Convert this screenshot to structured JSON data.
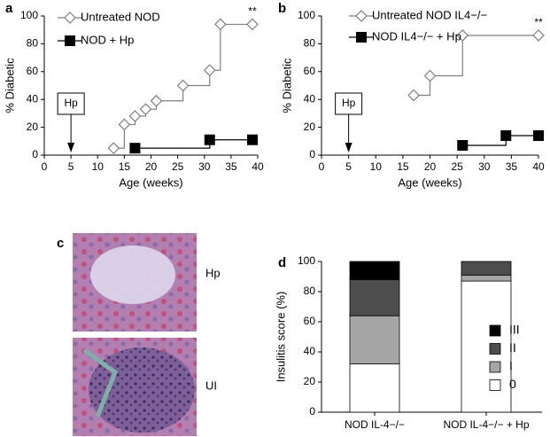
{
  "chart_data": [
    {
      "panel_label": "a",
      "type": "line",
      "step": true,
      "xlabel": "Age (weeks)",
      "ylabel": "% Diabetic",
      "xlim": [
        0,
        40
      ],
      "xticks": [
        0,
        5,
        10,
        15,
        20,
        25,
        30,
        35,
        40
      ],
      "ylim": [
        0,
        100
      ],
      "yticks": [
        0,
        20,
        40,
        60,
        80,
        100
      ],
      "series": [
        {
          "name": "Untreated NOD",
          "color": "#7f7f7f",
          "marker": "diamond",
          "x": [
            13,
            15,
            17,
            19,
            21,
            26,
            31,
            33,
            39
          ],
          "values": [
            5,
            22,
            28,
            33,
            39,
            50,
            61,
            94,
            94
          ]
        },
        {
          "name": "NOD + Hp",
          "color": "#000000",
          "marker": "square",
          "x": [
            17,
            31,
            39
          ],
          "values": [
            5,
            11,
            11
          ]
        }
      ],
      "significance": "**",
      "treatment": {
        "text": "Hp",
        "x": 5
      }
    },
    {
      "panel_label": "b",
      "type": "line",
      "step": true,
      "xlabel": "Age (weeks)",
      "ylabel": "% Diabetic",
      "xlim": [
        0,
        40
      ],
      "xticks": [
        0,
        5,
        10,
        15,
        20,
        25,
        30,
        35,
        40
      ],
      "ylim": [
        0,
        100
      ],
      "yticks": [
        0,
        20,
        40,
        60,
        80,
        100
      ],
      "series": [
        {
          "name": "Untreated NOD IL4−/−",
          "color": "#7f7f7f",
          "marker": "diamond",
          "x": [
            17,
            20,
            26,
            40
          ],
          "values": [
            43,
            57,
            86,
            86
          ]
        },
        {
          "name": "NOD IL4−/− + Hp",
          "color": "#000000",
          "marker": "square",
          "x": [
            26,
            34,
            40
          ],
          "values": [
            7,
            14,
            14
          ]
        }
      ],
      "significance": "**",
      "treatment": {
        "text": "Hp",
        "x": 5
      }
    },
    {
      "panel_label": "c",
      "type": "image",
      "labels": [
        "Hp",
        "UI"
      ]
    },
    {
      "panel_label": "d",
      "type": "bar",
      "stacked": true,
      "ylabel": "Insulitis score (%)",
      "categories": [
        "NOD IL-4−/−",
        "NOD IL-4−/− + Hp"
      ],
      "ylim": [
        0,
        100
      ],
      "yticks": [
        0,
        20,
        40,
        60,
        80,
        100
      ],
      "series": [
        {
          "name": "0",
          "color": "#ffffff",
          "values": [
            32,
            87
          ]
        },
        {
          "name": "I",
          "color": "#a6a6a6",
          "values": [
            32,
            4
          ]
        },
        {
          "name": "II",
          "color": "#4d4d4d",
          "values": [
            24,
            9
          ]
        },
        {
          "name": "III",
          "color": "#000000",
          "values": [
            12,
            0
          ]
        }
      ]
    }
  ]
}
